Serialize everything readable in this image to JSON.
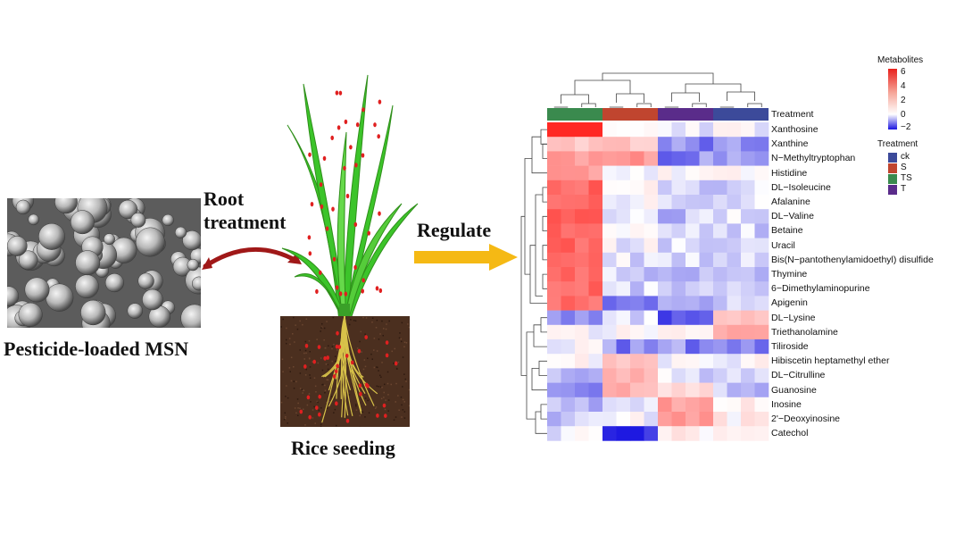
{
  "left_panel": {
    "arrow_label_line1": "Root",
    "arrow_label_line2": "treatment",
    "sem_caption": "Pesticide-loaded MSN"
  },
  "middle_panel": {
    "caption": "Rice seeding",
    "regulate_label": "Regulate"
  },
  "heatmap": {
    "treatment_row_label": "Treatment",
    "legend_title": "Metabolites",
    "legend_ticks": [
      "6",
      "4",
      "2",
      "0",
      "−2"
    ],
    "treatment_legend_title": "Treatment",
    "treatment_legend": [
      {
        "label": "ck",
        "color": "#3c4a9a"
      },
      {
        "label": "S",
        "color": "#c0452f"
      },
      {
        "label": "TS",
        "color": "#3a8a4e"
      },
      {
        "label": "T",
        "color": "#5a2c8a"
      }
    ],
    "treatment_bar_order": [
      "TS",
      "S",
      "T",
      "ck"
    ],
    "metabolites": [
      "Xanthosine",
      "Xanthine",
      "N−Methyltryptophan",
      "Histidine",
      "DL−Isoleucine",
      "Afalanine",
      "DL−Valine",
      "Betaine",
      "Uracil",
      "Bis(N−pantothenylamidoethyl) disulfide",
      "Thymine",
      "6−Dimethylaminopurine",
      "Apigenin",
      "DL−Lysine",
      "Triethanolamine",
      "Tiliroside",
      "Hibiscetin heptamethyl ether",
      "DL−Citrulline",
      "Guanosine",
      "Inosine",
      "2'−Deoxyinosine",
      "Catechol"
    ],
    "colors": {
      "high": "#e8201c",
      "mid": "#ffffff",
      "low": "#1a14e0"
    }
  }
}
